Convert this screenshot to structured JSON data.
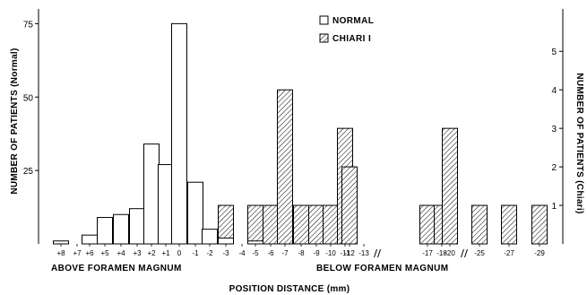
{
  "chart_data": {
    "type": "bar",
    "xlabel": "POSITION DISTANCE (mm)",
    "y_left": {
      "label": "NUMBER OF PATIENTS (Normal)",
      "ticks": [
        25,
        50,
        75
      ],
      "range": [
        0,
        80
      ]
    },
    "y_right": {
      "label": "NUMBER OF PATIENTS (Chiari)",
      "ticks": [
        1,
        2,
        3,
        4,
        5
      ],
      "range": [
        0,
        6.1
      ]
    },
    "legend": [
      {
        "name": "NORMAL",
        "style": "open"
      },
      {
        "name": "CHIARI I",
        "style": "hatched"
      }
    ],
    "legend_position": "top-center",
    "region_labels": [
      "ABOVE FORAMEN MAGNUM",
      "BELOW FORAMEN MAGNUM"
    ],
    "axis_breaks_after": [
      "-13",
      "-20"
    ],
    "categories": [
      "+8",
      "+7",
      "+6",
      "+5",
      "+4",
      "+3",
      "+2",
      "+1",
      "0",
      "-1",
      "-2",
      "-3",
      "-4",
      "-5",
      "-6",
      "-7",
      "-8",
      "-9",
      "-10",
      "-11",
      "-12",
      "-13",
      "-17",
      "-18",
      "-20",
      "-25",
      "-27",
      "-29"
    ],
    "series": [
      {
        "name": "NORMAL",
        "axis": "left",
        "values": [
          1,
          0,
          3,
          9,
          10,
          12,
          34,
          27,
          75,
          21,
          5,
          2,
          0,
          1,
          0,
          0,
          0,
          0,
          0,
          0,
          0,
          0,
          0,
          0,
          0,
          0,
          0,
          0
        ]
      },
      {
        "name": "CHIARI I",
        "axis": "right",
        "values": [
          0,
          0,
          0,
          0,
          0,
          0,
          0,
          0,
          0,
          0,
          0,
          1,
          0,
          1,
          1,
          4,
          1,
          1,
          1,
          3,
          2,
          0,
          1,
          1,
          3,
          1,
          1,
          1
        ]
      }
    ]
  }
}
